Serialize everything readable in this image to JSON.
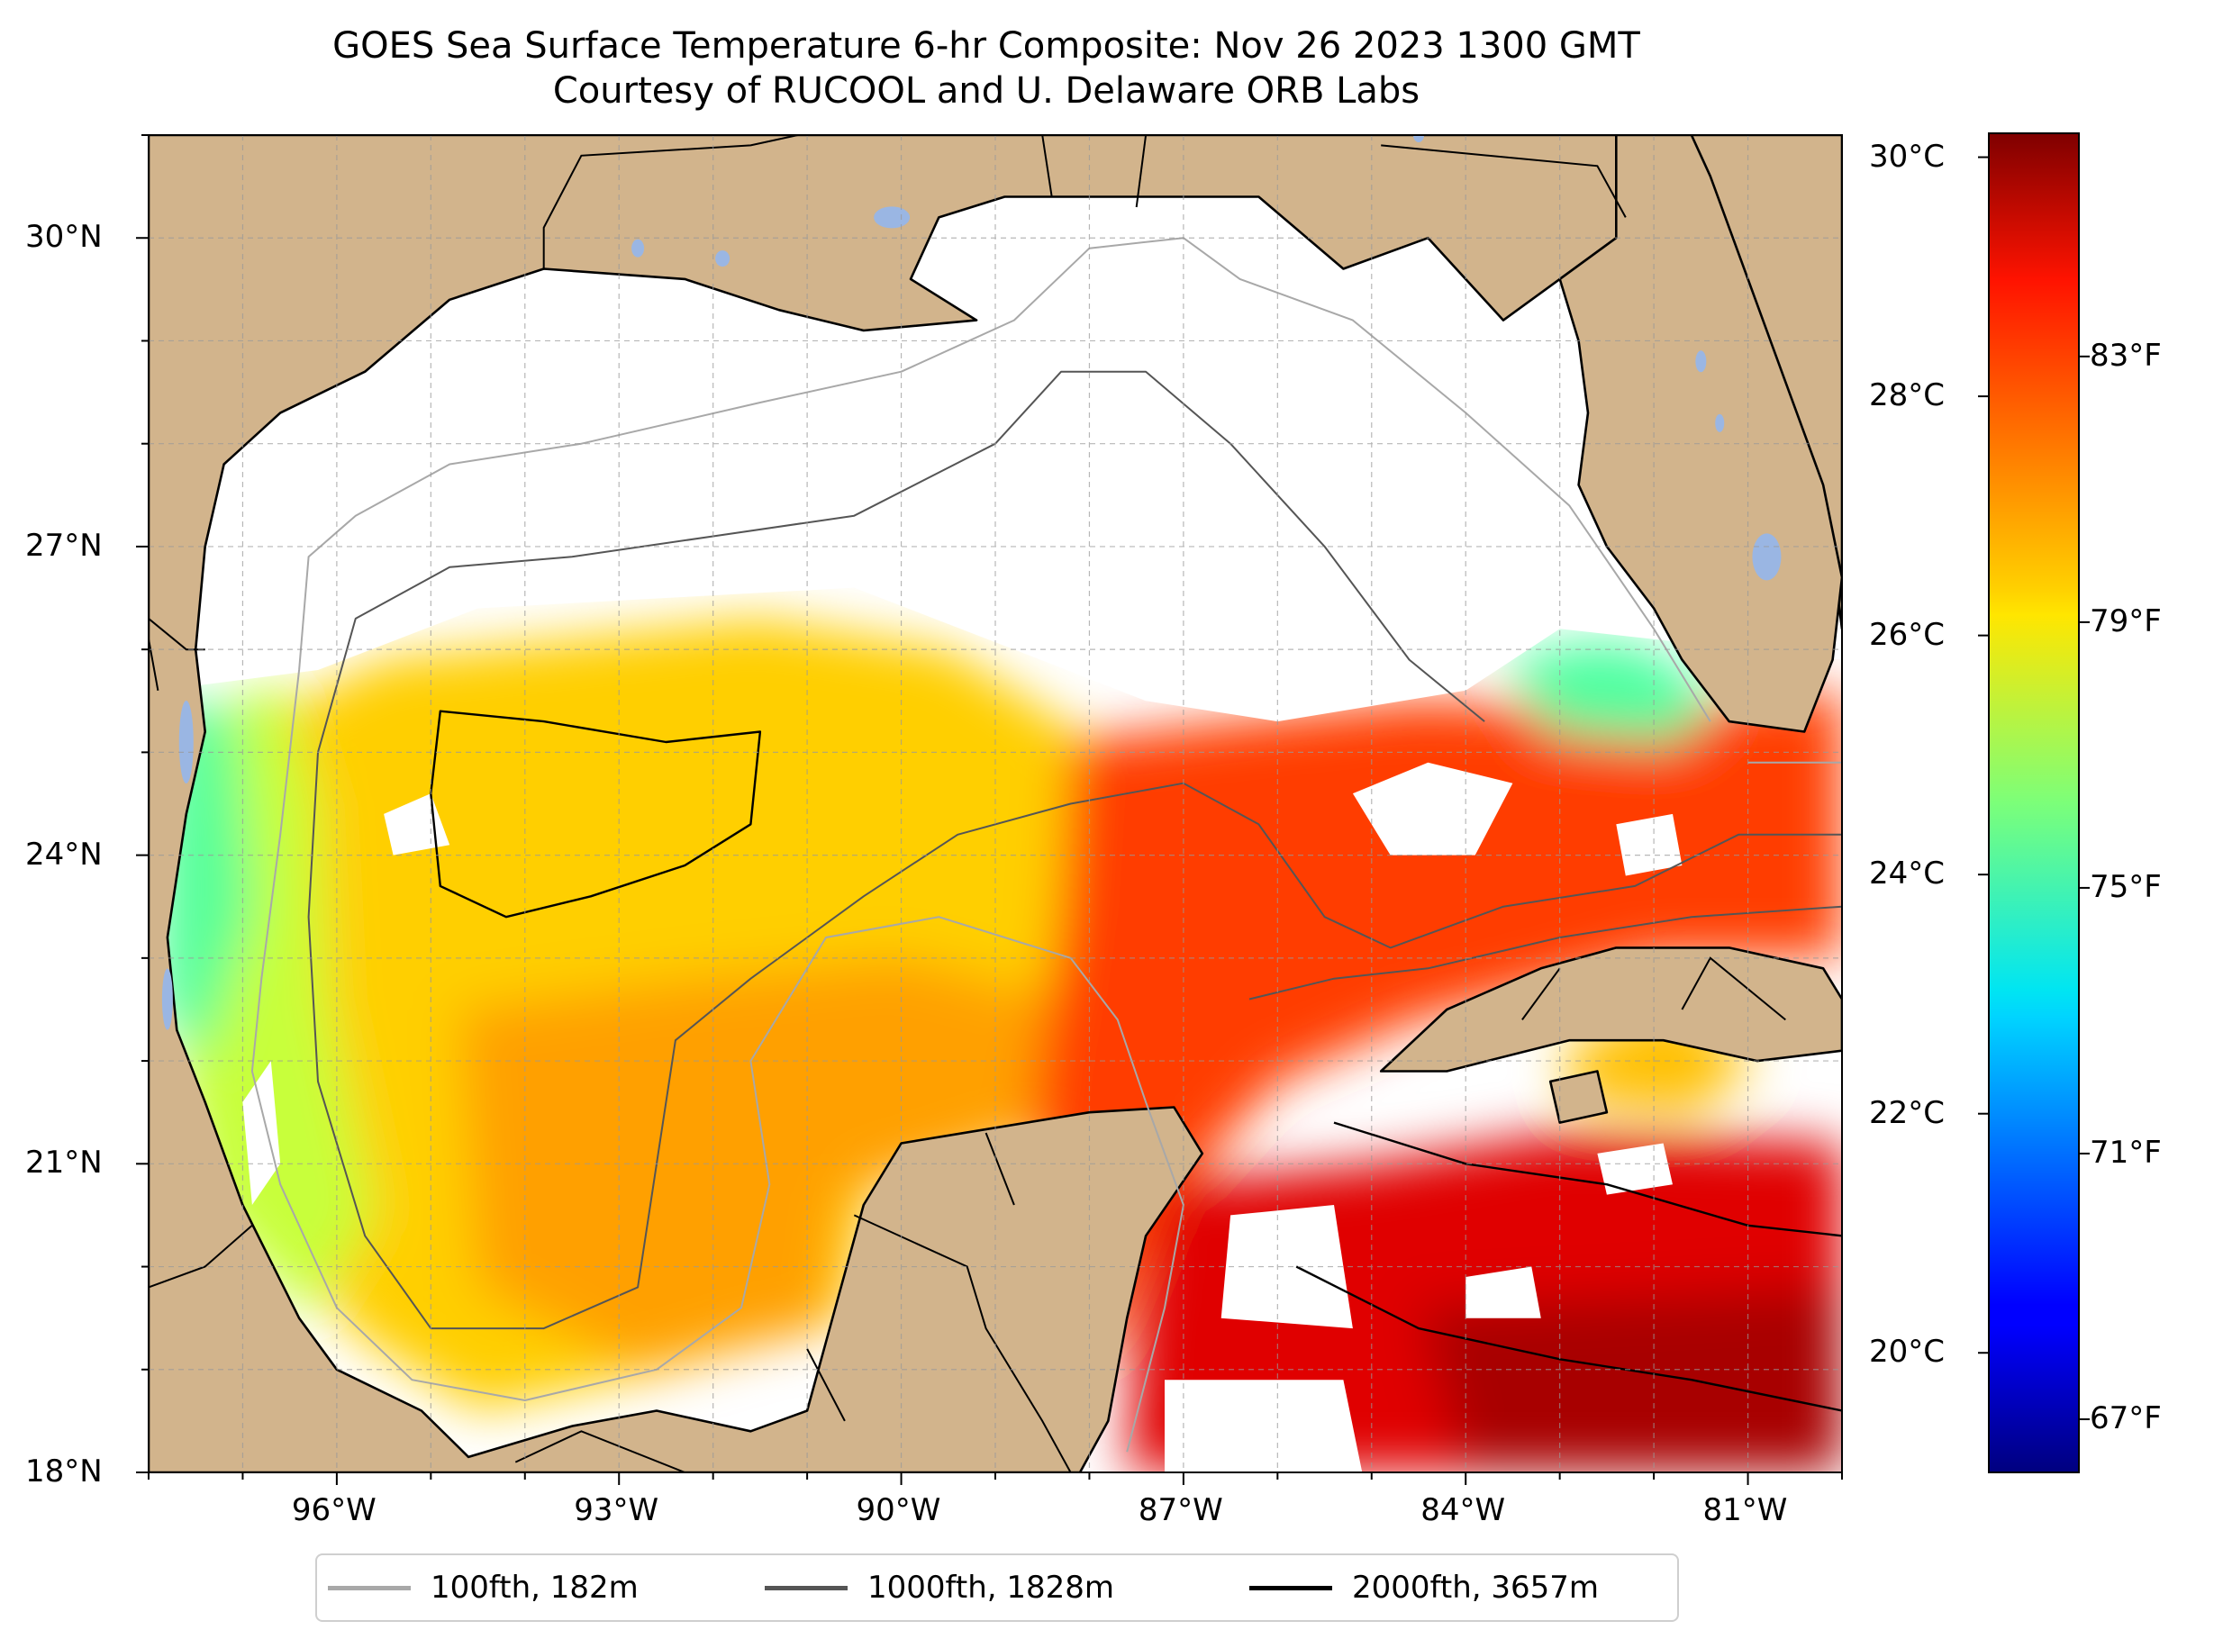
{
  "title": {
    "line1": "GOES Sea Surface Temperature 6-hr Composite: Nov 26 2023 1300 GMT",
    "line2": "Courtesy of RUCOOL and U. Delaware ORB Labs"
  },
  "map": {
    "extent": {
      "lon_min": -98,
      "lon_max": -80,
      "lat_min": 18,
      "lat_max": 31
    },
    "lat_ticks": [
      {
        "value": 30,
        "label": "30°N"
      },
      {
        "value": 27,
        "label": "27°N"
      },
      {
        "value": 24,
        "label": "24°N"
      },
      {
        "value": 21,
        "label": "21°N"
      },
      {
        "value": 18,
        "label": "18°N"
      }
    ],
    "lon_ticks": [
      {
        "value": -96,
        "label": "96°W"
      },
      {
        "value": -93,
        "label": "93°W"
      },
      {
        "value": -90,
        "label": "90°W"
      },
      {
        "value": -87,
        "label": "87°W"
      },
      {
        "value": -84,
        "label": "84°W"
      },
      {
        "value": -81,
        "label": "81°W"
      }
    ],
    "grid": true,
    "colors": {
      "land": "#d2b48c",
      "lakes": "#9ab6e3",
      "no_data": "#ffffff"
    }
  },
  "colorbar": {
    "colormap": "jet",
    "range_c": [
      19,
      30.2
    ],
    "celsius_ticks": [
      {
        "value": 30,
        "label": "30°C"
      },
      {
        "value": 28,
        "label": "28°C"
      },
      {
        "value": 26,
        "label": "26°C"
      },
      {
        "value": 24,
        "label": "24°C"
      },
      {
        "value": 22,
        "label": "22°C"
      },
      {
        "value": 20,
        "label": "20°C"
      }
    ],
    "fahrenheit_ticks": [
      {
        "value": 83,
        "label": "83°F"
      },
      {
        "value": 79,
        "label": "79°F"
      },
      {
        "value": 75,
        "label": "75°F"
      },
      {
        "value": 71,
        "label": "71°F"
      },
      {
        "value": 67,
        "label": "67°F"
      }
    ]
  },
  "legend": {
    "placement": "bottom",
    "items": [
      {
        "label": "100fth, 182m",
        "color": "#a8a8a8"
      },
      {
        "label": "1000fth, 1828m",
        "color": "#555555"
      },
      {
        "label": "2000fth, 3657m",
        "color": "#000000"
      }
    ]
  }
}
